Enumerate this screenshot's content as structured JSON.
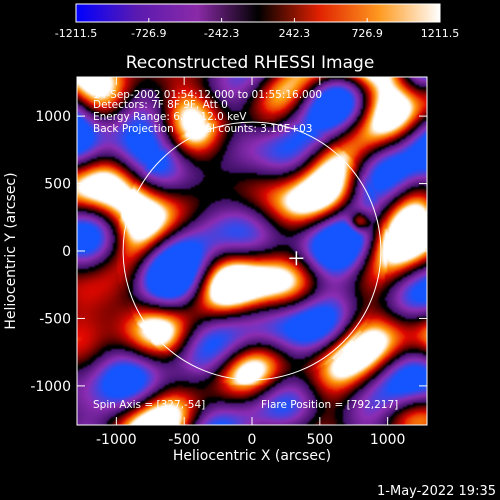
{
  "chart_data": {
    "type": "heatmap",
    "title": "Reconstructed RHESSI Image",
    "xlabel": "Heliocentric X (arcsec)",
    "ylabel": "Heliocentric Y (arcsec)",
    "xlim": [
      -1290,
      1290
    ],
    "ylim": [
      -1290,
      1290
    ],
    "x_ticks": [
      -1000,
      -500,
      0,
      500,
      1000
    ],
    "y_ticks": [
      -1000,
      -500,
      0,
      500,
      1000
    ],
    "colorbar": {
      "range": [
        -1211.5,
        1211.5
      ],
      "tick_values": [
        -1211.5,
        -726.9,
        -242.3,
        242.3,
        726.9,
        1211.5
      ],
      "tick_labels": [
        "-1211.5",
        "-726.9",
        "-242.3",
        "242.3",
        "726.9",
        "1211.5"
      ],
      "colors": [
        "#0000ff",
        "#5a1ab0",
        "#8a2aa8",
        "#000000",
        "#e02000",
        "#ff9a20",
        "#ffffff"
      ]
    },
    "info_lines": [
      "14-Sep-2002 01:54:12.000 to 01:55:16.000",
      "Detectors: 7F 8F 9F, Att 0",
      "Energy Range: 6.0 - 12.0 keV",
      "Back Projection     Total counts: 3.10E+03"
    ],
    "solar_disk": {
      "center": [
        0,
        0
      ],
      "radius_arcsec": 950
    },
    "flare_source": {
      "x": 792,
      "y": 217,
      "value": 1150
    },
    "spin_axis": {
      "x": 327,
      "y": -54
    },
    "spin_axis_label": "Spin Axis = [327,-54]",
    "flare_position_label": "Flare Position = [792,217]",
    "footer_date": "1-May-2022 19:35"
  }
}
